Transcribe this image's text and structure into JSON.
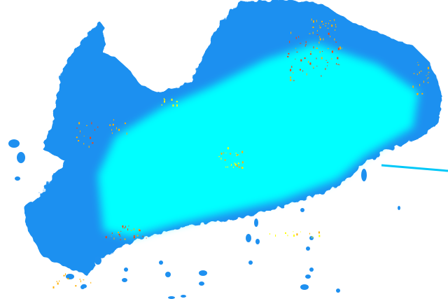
{
  "radar": {
    "colors": {
      "background": "#ffffff",
      "weak": "#1e90f0",
      "light": "#00c8f8",
      "moderate": "#00ffff",
      "medium": "#ffff00",
      "strong": "#ffb000",
      "heavy": "#ff4000",
      "extreme": "#e00000"
    }
  }
}
